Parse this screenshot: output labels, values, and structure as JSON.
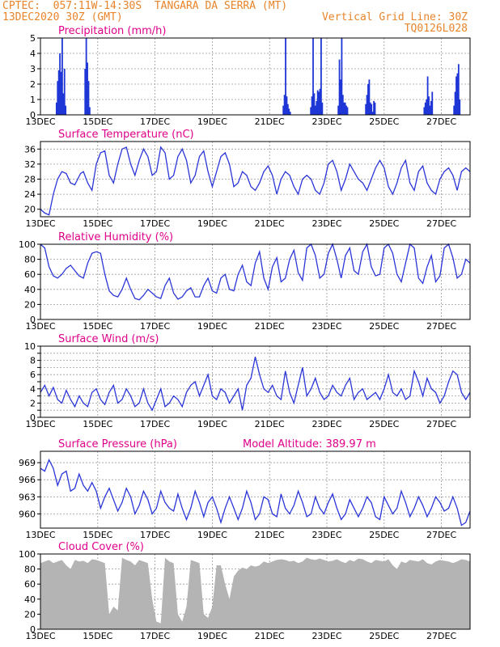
{
  "header": {
    "line1_left": "CPTEC:  057:11W-14:30S  TANGARA DA SERRA (MT)",
    "line2_left": "13DEC2020 30Z (GMT)",
    "line2_right": "Vertical Grid Line: 30Z",
    "line3_right": "TQ0126L028"
  },
  "colors": {
    "header": "#e8842a",
    "title": "#e0008a",
    "line": "#2a35d8",
    "bar": "#1f36d6",
    "cloud": "#b4b4b4",
    "grid": "#9a9a9a"
  },
  "chart_data": [
    {
      "id": "precip",
      "type": "bar",
      "title": "Precipitation (mm/h)",
      "xlim": [
        0,
        15
      ],
      "ylim": [
        0,
        5
      ],
      "yticks": [
        0,
        1,
        2,
        3,
        4,
        5
      ],
      "xticks": [
        0,
        2,
        4,
        6,
        8,
        10,
        12,
        14
      ],
      "xtick_labels": [
        "13DEC",
        "15DEC",
        "17DEC",
        "19DEC",
        "21DEC",
        "23DEC",
        "25DEC",
        "27DEC"
      ],
      "x": [
        0.56,
        0.6,
        0.64,
        0.68,
        0.72,
        0.76,
        0.8,
        0.84,
        0.88,
        1.56,
        1.6,
        1.64,
        1.68,
        1.72,
        8.48,
        8.52,
        8.56,
        8.6,
        8.64,
        8.68,
        8.72,
        9.44,
        9.48,
        9.52,
        9.56,
        9.6,
        9.64,
        9.68,
        9.72,
        9.76,
        9.8,
        9.84,
        10.4,
        10.44,
        10.48,
        10.52,
        10.56,
        10.6,
        10.64,
        10.68,
        10.72,
        11.36,
        11.4,
        11.44,
        11.48,
        11.52,
        11.56,
        11.6,
        11.64,
        11.68,
        13.4,
        13.44,
        13.48,
        13.52,
        13.56,
        13.6,
        13.64,
        13.68,
        14.44,
        14.48,
        14.52,
        14.56,
        14.6,
        14.64
      ],
      "values": [
        0.8,
        2.2,
        2.9,
        4.0,
        2.8,
        5.0,
        1.4,
        3.0,
        0.6,
        3.0,
        5.0,
        3.4,
        2.2,
        0.5,
        0.6,
        1.3,
        5.0,
        1.2,
        0.7,
        0.4,
        0.2,
        0.5,
        1.2,
        5.0,
        1.4,
        0.6,
        0.9,
        1.6,
        1.5,
        1.7,
        5.0,
        0.8,
        0.6,
        3.6,
        2.3,
        5.0,
        1.3,
        0.8,
        0.8,
        0.6,
        0.5,
        0.7,
        1.3,
        2.0,
        2.3,
        0.8,
        0.7,
        0.2,
        0.9,
        0.8,
        0.5,
        0.8,
        1.0,
        2.5,
        1.2,
        0.6,
        0.9,
        1.5,
        0.6,
        1.5,
        2.5,
        2.7,
        3.3,
        1.0
      ]
    },
    {
      "id": "temp",
      "type": "line",
      "title": "Surface Temperature (nC)",
      "xlim": [
        0,
        15
      ],
      "ylim": [
        18,
        38
      ],
      "yticks": [
        20,
        24,
        28,
        32,
        36
      ],
      "xticks": [
        0,
        2,
        4,
        6,
        8,
        10,
        12,
        14
      ],
      "xtick_labels": [
        "13DEC",
        "15DEC",
        "17DEC",
        "19DEC",
        "21DEC",
        "23DEC",
        "25DEC",
        "27DEC"
      ],
      "x": [
        0,
        0.15,
        0.3,
        0.45,
        0.6,
        0.75,
        0.9,
        1.05,
        1.2,
        1.3,
        1.4,
        1.5,
        1.65,
        1.8,
        1.95,
        2.1,
        2.25,
        2.4,
        2.55,
        2.7,
        2.85,
        3,
        3.15,
        3.3,
        3.45,
        3.6,
        3.75,
        3.9,
        4.05,
        4.2,
        4.35,
        4.5,
        4.65,
        4.8,
        4.95,
        5.1,
        5.25,
        5.4,
        5.55,
        5.7,
        5.85,
        6,
        6.15,
        6.3,
        6.45,
        6.6,
        6.75,
        6.9,
        7.05,
        7.2,
        7.35,
        7.5,
        7.65,
        7.8,
        7.95,
        8.1,
        8.25,
        8.4,
        8.55,
        8.7,
        8.85,
        9,
        9.15,
        9.3,
        9.45,
        9.6,
        9.75,
        9.9,
        10.05,
        10.2,
        10.35,
        10.5,
        10.65,
        10.8,
        10.95,
        11.1,
        11.25,
        11.4,
        11.55,
        11.7,
        11.85,
        12,
        12.15,
        12.3,
        12.45,
        12.6,
        12.75,
        12.9,
        13.05,
        13.2,
        13.35,
        13.5,
        13.65,
        13.8,
        13.95,
        14.1,
        14.25,
        14.4,
        14.55,
        14.7,
        14.85,
        15
      ],
      "y": [
        20,
        19,
        18.5,
        24,
        28,
        30,
        29.5,
        27,
        26.5,
        28,
        29.5,
        30,
        27,
        25,
        32,
        35,
        35.5,
        29,
        27,
        32,
        36,
        36.5,
        32,
        29,
        33,
        36,
        34,
        29,
        30,
        36.5,
        35,
        28,
        29,
        34,
        36,
        33,
        27,
        29,
        34,
        35.5,
        30,
        26,
        30,
        34,
        35,
        32,
        26,
        27,
        30,
        29,
        26,
        25,
        27,
        30,
        31.5,
        29,
        24,
        28,
        30,
        29,
        26,
        24,
        28,
        29,
        28,
        25,
        24,
        27,
        32,
        33,
        30,
        25,
        28,
        32,
        30,
        28,
        27,
        25,
        28,
        31,
        33,
        31,
        26,
        24,
        27,
        31,
        33,
        27,
        25,
        30,
        31.5,
        27,
        25,
        24,
        28,
        30,
        31,
        29,
        25,
        30,
        31,
        30
      ]
    },
    {
      "id": "rh",
      "type": "line",
      "title": "Relative Humidity (%)",
      "xlim": [
        0,
        15
      ],
      "ylim": [
        0,
        100
      ],
      "yticks": [
        0,
        20,
        40,
        60,
        80,
        100
      ],
      "xticks": [
        0,
        2,
        4,
        6,
        8,
        10,
        12,
        14
      ],
      "xtick_labels": [
        "13DEC",
        "15DEC",
        "17DEC",
        "19DEC",
        "21DEC",
        "23DEC",
        "25DEC",
        "27DEC"
      ],
      "x": [
        0,
        0.15,
        0.3,
        0.45,
        0.6,
        0.75,
        0.9,
        1.05,
        1.2,
        1.35,
        1.5,
        1.65,
        1.8,
        1.95,
        2.1,
        2.25,
        2.4,
        2.55,
        2.7,
        2.85,
        3,
        3.15,
        3.3,
        3.45,
        3.6,
        3.75,
        3.9,
        4.05,
        4.2,
        4.35,
        4.5,
        4.65,
        4.8,
        4.95,
        5.1,
        5.25,
        5.4,
        5.55,
        5.7,
        5.85,
        6,
        6.15,
        6.3,
        6.45,
        6.6,
        6.75,
        6.9,
        7.05,
        7.2,
        7.35,
        7.5,
        7.65,
        7.8,
        7.95,
        8.1,
        8.25,
        8.4,
        8.55,
        8.7,
        8.85,
        9,
        9.15,
        9.3,
        9.45,
        9.6,
        9.75,
        9.9,
        10.05,
        10.2,
        10.35,
        10.5,
        10.65,
        10.8,
        10.95,
        11.1,
        11.25,
        11.4,
        11.55,
        11.7,
        11.85,
        12,
        12.15,
        12.3,
        12.45,
        12.6,
        12.75,
        12.9,
        13.05,
        13.2,
        13.35,
        13.5,
        13.65,
        13.8,
        13.95,
        14.1,
        14.25,
        14.4,
        14.55,
        14.7,
        14.85,
        15
      ],
      "y": [
        100,
        95,
        70,
        58,
        55,
        60,
        68,
        72,
        65,
        58,
        55,
        75,
        88,
        90,
        88,
        60,
        38,
        32,
        30,
        40,
        55,
        40,
        28,
        26,
        32,
        40,
        35,
        30,
        28,
        45,
        55,
        35,
        27,
        30,
        38,
        42,
        30,
        30,
        45,
        55,
        38,
        35,
        55,
        60,
        40,
        38,
        60,
        72,
        50,
        45,
        75,
        90,
        55,
        40,
        70,
        82,
        50,
        55,
        80,
        92,
        62,
        52,
        95,
        100,
        85,
        55,
        60,
        88,
        100,
        80,
        55,
        85,
        95,
        65,
        60,
        90,
        100,
        70,
        58,
        60,
        95,
        100,
        88,
        60,
        50,
        75,
        100,
        95,
        55,
        48,
        70,
        85,
        50,
        58,
        95,
        100,
        82,
        55,
        60,
        80,
        75
      ]
    },
    {
      "id": "wind",
      "type": "line",
      "title": "Surface Wind (m/s)",
      "xlim": [
        0,
        15
      ],
      "ylim": [
        0,
        10
      ],
      "yticks": [
        0,
        1,
        2,
        3,
        4,
        5,
        6,
        7,
        8,
        9,
        10
      ],
      "ytick_labels": [
        "0",
        "",
        "2",
        "",
        "4",
        "",
        "6",
        "",
        "8",
        "",
        "10"
      ],
      "xticks": [
        0,
        2,
        4,
        6,
        8,
        10,
        12,
        14
      ],
      "xtick_labels": [
        "13DEC",
        "15DEC",
        "17DEC",
        "19DEC",
        "21DEC",
        "23DEC",
        "25DEC",
        "27DEC"
      ],
      "x": [
        0,
        0.15,
        0.3,
        0.45,
        0.6,
        0.75,
        0.9,
        1.05,
        1.2,
        1.35,
        1.5,
        1.65,
        1.8,
        1.95,
        2.1,
        2.25,
        2.4,
        2.55,
        2.7,
        2.85,
        3,
        3.15,
        3.3,
        3.45,
        3.6,
        3.75,
        3.9,
        4.05,
        4.2,
        4.35,
        4.5,
        4.65,
        4.8,
        4.95,
        5.1,
        5.25,
        5.4,
        5.55,
        5.7,
        5.85,
        6,
        6.15,
        6.3,
        6.45,
        6.6,
        6.75,
        6.9,
        7.05,
        7.2,
        7.35,
        7.5,
        7.65,
        7.8,
        7.95,
        8.1,
        8.25,
        8.4,
        8.55,
        8.7,
        8.85,
        9,
        9.15,
        9.3,
        9.45,
        9.6,
        9.75,
        9.9,
        10.05,
        10.2,
        10.35,
        10.5,
        10.65,
        10.8,
        10.95,
        11.1,
        11.25,
        11.4,
        11.55,
        11.7,
        11.85,
        12,
        12.15,
        12.3,
        12.45,
        12.6,
        12.75,
        12.9,
        13.05,
        13.2,
        13.35,
        13.5,
        13.65,
        13.8,
        13.95,
        14.1,
        14.25,
        14.4,
        14.55,
        14.7,
        14.85,
        15
      ],
      "y": [
        3.5,
        4.5,
        3,
        4.2,
        2.5,
        2,
        3.8,
        2.5,
        1.5,
        3,
        2,
        1.5,
        3.5,
        4,
        2.5,
        1.8,
        3.5,
        4.5,
        2,
        2.5,
        4,
        3,
        1.5,
        2,
        4,
        2,
        1,
        2.5,
        4,
        1.5,
        2,
        3,
        2.5,
        1.5,
        3.5,
        4.5,
        5,
        3,
        4.5,
        6,
        3,
        2.5,
        4,
        3.5,
        2,
        3,
        4,
        1,
        4.5,
        5.5,
        8.5,
        6,
        4,
        3.5,
        4.5,
        3,
        2.5,
        6.5,
        3.5,
        2,
        4.5,
        7,
        3,
        4,
        5.5,
        3.5,
        2.5,
        3,
        4.5,
        3.5,
        3,
        4.5,
        5.5,
        2.5,
        3.5,
        4,
        2.5,
        3,
        3.5,
        2.5,
        4,
        6,
        3.5,
        3,
        4,
        2.5,
        3,
        6.5,
        5,
        3,
        5.5,
        4,
        3.5,
        2,
        3,
        5,
        6.5,
        6,
        3.5,
        2.5,
        3.5
      ]
    },
    {
      "id": "pres",
      "type": "line",
      "title": "Surface Pressure (hPa)",
      "annotation": "Model Altitude: 389.97 m",
      "xlim": [
        0,
        15
      ],
      "ylim": [
        957.5,
        971
      ],
      "yticks": [
        960,
        963,
        966,
        969
      ],
      "xticks": [
        0,
        2,
        4,
        6,
        8,
        10,
        12,
        14
      ],
      "xtick_labels": [
        "13DEC",
        "15DEC",
        "17DEC",
        "19DEC",
        "21DEC",
        "23DEC",
        "25DEC",
        "27DEC"
      ],
      "x": [
        0,
        0.15,
        0.3,
        0.45,
        0.6,
        0.75,
        0.9,
        1.05,
        1.2,
        1.35,
        1.5,
        1.65,
        1.8,
        1.95,
        2.1,
        2.25,
        2.4,
        2.55,
        2.7,
        2.85,
        3,
        3.15,
        3.3,
        3.45,
        3.6,
        3.75,
        3.9,
        4.05,
        4.2,
        4.35,
        4.5,
        4.65,
        4.8,
        4.95,
        5.1,
        5.25,
        5.4,
        5.55,
        5.7,
        5.85,
        6,
        6.15,
        6.3,
        6.45,
        6.6,
        6.75,
        6.9,
        7.05,
        7.2,
        7.35,
        7.5,
        7.65,
        7.8,
        7.95,
        8.1,
        8.25,
        8.4,
        8.55,
        8.7,
        8.85,
        9,
        9.15,
        9.3,
        9.45,
        9.6,
        9.75,
        9.9,
        10.05,
        10.2,
        10.35,
        10.5,
        10.65,
        10.8,
        10.95,
        11.1,
        11.25,
        11.4,
        11.55,
        11.7,
        11.85,
        12,
        12.15,
        12.3,
        12.45,
        12.6,
        12.75,
        12.9,
        13.05,
        13.2,
        13.35,
        13.5,
        13.65,
        13.8,
        13.95,
        14.1,
        14.25,
        14.4,
        14.55,
        14.7,
        14.85,
        15
      ],
      "y": [
        968,
        967.5,
        969.5,
        968,
        965,
        967,
        967.5,
        964,
        964.5,
        967,
        965,
        964,
        965.5,
        964,
        961,
        963,
        964.5,
        962.5,
        960.5,
        962,
        964.5,
        963,
        960,
        961.5,
        964,
        962.5,
        960,
        961,
        964,
        962,
        961,
        960.5,
        963.5,
        961,
        959,
        961,
        964,
        962,
        959.5,
        962,
        963,
        961,
        958.5,
        961,
        963,
        961,
        959,
        961,
        964,
        962,
        959,
        960,
        963,
        962.5,
        960,
        959.5,
        963.5,
        961,
        960,
        961.5,
        964,
        962,
        959.5,
        960,
        963,
        961,
        960,
        962,
        963.5,
        961,
        959,
        960,
        962.5,
        961,
        959.5,
        961,
        963,
        962,
        959.5,
        959,
        963,
        961.5,
        960,
        961,
        964,
        962,
        959.5,
        961,
        963,
        961.5,
        959.5,
        961,
        963,
        962,
        960.5,
        961,
        963,
        961,
        958,
        958.5,
        960.5
      ]
    },
    {
      "id": "cloud",
      "type": "area",
      "title": "Cloud Cover (%)",
      "xlim": [
        0,
        15
      ],
      "ylim": [
        0,
        100
      ],
      "yticks": [
        0,
        20,
        40,
        60,
        80,
        100
      ],
      "xticks": [
        0,
        2,
        4,
        6,
        8,
        10,
        12,
        14
      ],
      "xtick_labels": [
        "13DEC",
        "15DEC",
        "17DEC",
        "19DEC",
        "21DEC",
        "23DEC",
        "25DEC",
        "27DEC"
      ],
      "x": [
        0,
        0.15,
        0.3,
        0.45,
        0.6,
        0.75,
        0.9,
        1.05,
        1.2,
        1.35,
        1.5,
        1.65,
        1.8,
        1.95,
        2.1,
        2.25,
        2.4,
        2.55,
        2.7,
        2.85,
        3,
        3.15,
        3.3,
        3.45,
        3.6,
        3.75,
        3.9,
        4.05,
        4.2,
        4.35,
        4.5,
        4.65,
        4.8,
        4.95,
        5.1,
        5.25,
        5.4,
        5.55,
        5.7,
        5.85,
        6,
        6.15,
        6.3,
        6.45,
        6.6,
        6.75,
        6.9,
        7.05,
        7.2,
        7.35,
        7.5,
        7.65,
        7.8,
        7.95,
        8.1,
        8.25,
        8.4,
        8.55,
        8.7,
        8.85,
        9,
        9.15,
        9.3,
        9.45,
        9.6,
        9.75,
        9.9,
        10.05,
        10.2,
        10.35,
        10.5,
        10.65,
        10.8,
        10.95,
        11.1,
        11.25,
        11.4,
        11.55,
        11.7,
        11.85,
        12,
        12.15,
        12.3,
        12.45,
        12.6,
        12.75,
        12.9,
        13.05,
        13.2,
        13.35,
        13.5,
        13.65,
        13.8,
        13.95,
        14.1,
        14.25,
        14.4,
        14.55,
        14.7,
        14.85,
        15
      ],
      "y": [
        88,
        90,
        92,
        88,
        90,
        92,
        85,
        80,
        92,
        90,
        91,
        88,
        93,
        92,
        90,
        88,
        20,
        30,
        25,
        95,
        92,
        90,
        85,
        92,
        90,
        88,
        40,
        10,
        8,
        95,
        90,
        88,
        20,
        10,
        30,
        92,
        90,
        88,
        20,
        15,
        30,
        85,
        85,
        60,
        40,
        70,
        78,
        82,
        80,
        85,
        83,
        85,
        90,
        88,
        90,
        92,
        93,
        92,
        90,
        91,
        88,
        90,
        95,
        93,
        92,
        94,
        92,
        90,
        91,
        93,
        90,
        88,
        92,
        90,
        94,
        93,
        90,
        88,
        92,
        91,
        90,
        93,
        85,
        80,
        90,
        88,
        92,
        91,
        90,
        93,
        88,
        86,
        90,
        92,
        91,
        90,
        88,
        90,
        93,
        92,
        90
      ]
    }
  ]
}
